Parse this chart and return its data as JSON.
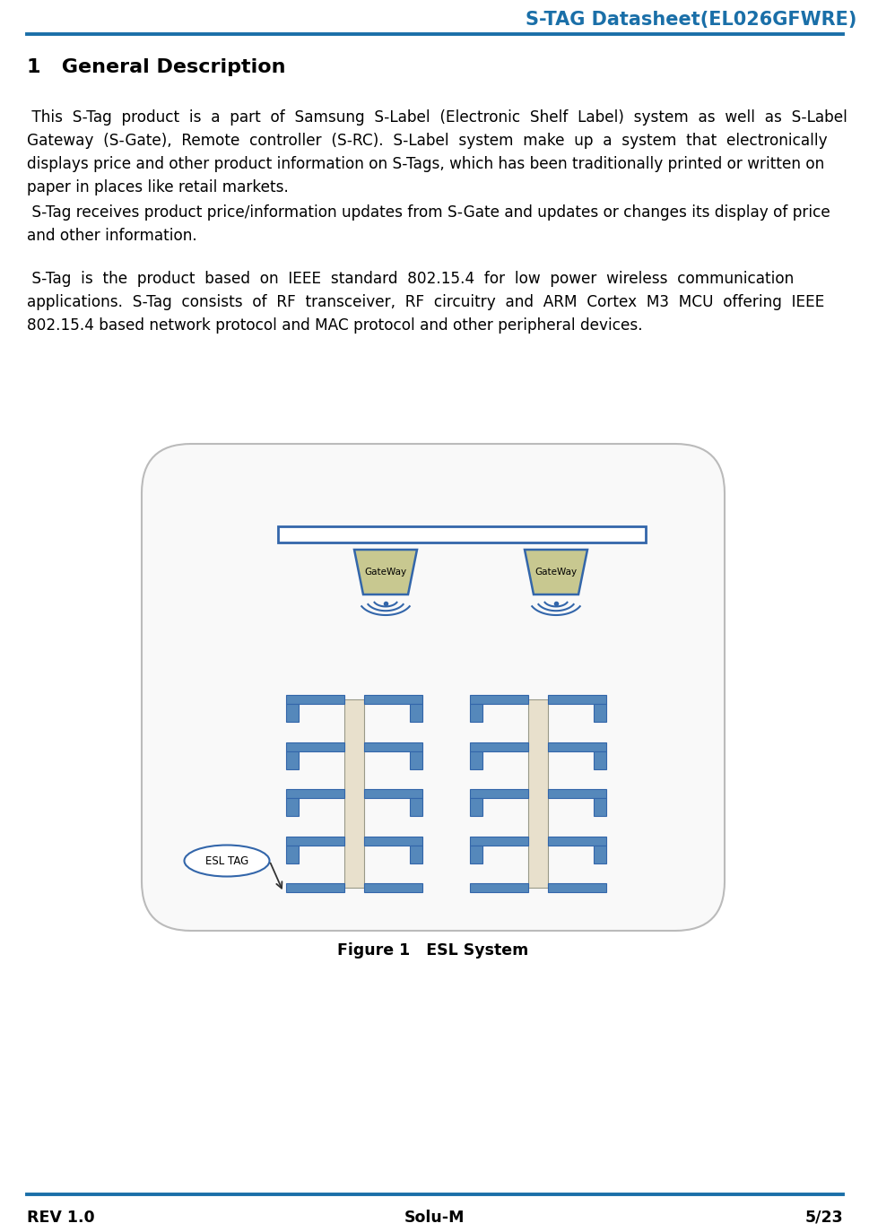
{
  "header_title": "S-TAG Datasheet(EL026GFWRE)",
  "header_color": "#1a6fa8",
  "header_line_color": "#1a6fa8",
  "section_title": "1   General Description",
  "body_color": "#000000",
  "para1_lines": [
    " This  S-Tag  product  is  a  part  of  Samsung  S-Label  (Electronic  Shelf  Label)  system  as  well  as  S-Label",
    "Gateway  (S-Gate),  Remote  controller  (S-RC).  S-Label  system  make  up  a  system  that  electronically",
    "displays price and other product information on S-Tags, which has been traditionally printed or written on",
    "paper in places like retail markets."
  ],
  "para2_lines": [
    " S-Tag receives product price/information updates from S-Gate and updates or changes its display of price",
    "and other information."
  ],
  "para3_lines": [
    " S-Tag  is  the  product  based  on  IEEE  standard  802.15.4  for  low  power  wireless  communication",
    "applications.  S-Tag  consists  of  RF  transceiver,  RF  circuitry  and  ARM  Cortex  M3  MCU  offering  IEEE",
    "802.15.4 based network protocol and MAC protocol and other peripheral devices."
  ],
  "figure_caption": "Figure 1   ESL System",
  "footer_rev": "REV 1.0",
  "footer_company": "Solu-M",
  "footer_page": "5/23",
  "bg_color": "#ffffff",
  "gateway_fill": "#c8c890",
  "gateway_edge": "#3366aa",
  "shelf_fill": "#e8e0cc",
  "shelf_edge": "#3366aa",
  "shelf_bracket_fill": "#5588bb",
  "signal_color": "#3366aa",
  "box_fill": "#f8f8f8",
  "box_edge": "#aaaaaa",
  "esltag_fill": "#ffffff",
  "esltag_edge": "#3366aa"
}
